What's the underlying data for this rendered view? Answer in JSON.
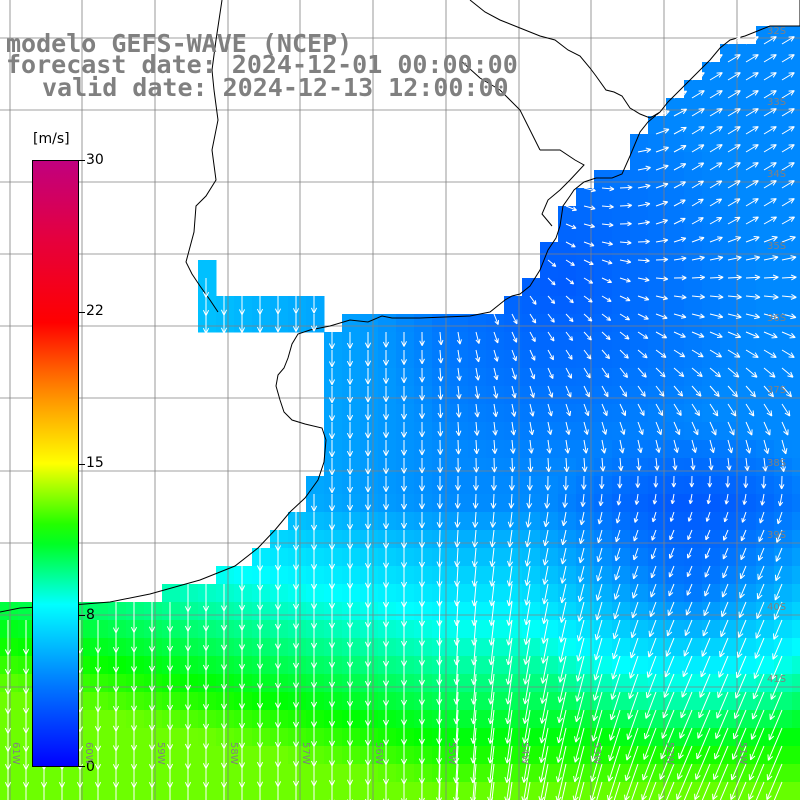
{
  "title": {
    "line1": "modelo GEFS-WAVE (NCEP)",
    "line2": "forecast date: 2024-12-01 00:00:00",
    "line3": "valid date: 2024-12-13 12:00:00"
  },
  "colorbar": {
    "unit": "[m/s]",
    "ticks": [
      "30",
      "22",
      "15",
      "8",
      "0"
    ],
    "tick_values": [
      30,
      22,
      15,
      8,
      0
    ],
    "min": 0,
    "max": 30,
    "colors": [
      "#0000ff",
      "#00c8ff",
      "#00ffff",
      "#00ff00",
      "#ffff00",
      "#ff8000",
      "#ff0000",
      "#c0007f"
    ]
  },
  "lat_labels": [
    "32S",
    "33S",
    "34S",
    "35S",
    "36S",
    "37S",
    "38S",
    "39S",
    "40S",
    "41S"
  ],
  "lon_labels": [
    "61W",
    "60W",
    "59W",
    "58W",
    "57W",
    "56W",
    "55W",
    "54W",
    "53W",
    "52W",
    "51W"
  ],
  "map_colors": {
    "land": "#ffffff",
    "coast": "#000000",
    "grid": "#808080",
    "arrow": "#ffffff"
  }
}
